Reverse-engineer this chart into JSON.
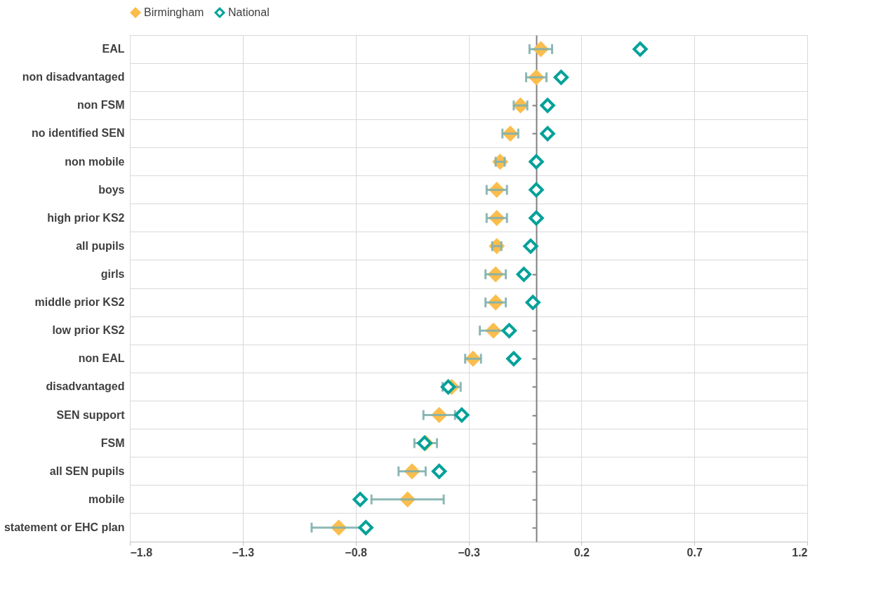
{
  "chart_data": {
    "type": "scatter",
    "orientation": "horizontal",
    "marker": "diamond",
    "legend": "top",
    "grid": true,
    "categories": [
      "EAL",
      "non disadvantaged",
      "non FSM",
      "no identified SEN",
      "non mobile",
      "boys",
      "high prior KS2",
      "all pupils",
      "girls",
      "middle prior KS2",
      "low prior KS2",
      "non EAL",
      "disadvantaged",
      "SEN support",
      "FSM",
      "all SEN pupils",
      "mobile",
      "statement or EHC plan"
    ],
    "series": [
      {
        "name": "Birmingham",
        "color": "#fbbd4c",
        "values": [
          0.02,
          0.0,
          -0.07,
          -0.115,
          -0.16,
          -0.175,
          -0.175,
          -0.175,
          -0.18,
          -0.18,
          -0.19,
          -0.28,
          -0.375,
          -0.43,
          -0.49,
          -0.55,
          -0.57,
          -0.875
        ],
        "errors": [
          0.05,
          0.045,
          0.03,
          0.035,
          0.02,
          0.045,
          0.045,
          0.02,
          0.045,
          0.045,
          0.06,
          0.035,
          0.04,
          0.07,
          0.05,
          0.06,
          0.16,
          0.12
        ]
      },
      {
        "name": "National",
        "color": "#00a19a",
        "values": [
          0.46,
          0.11,
          0.05,
          0.05,
          0.0,
          0.0,
          0.0,
          -0.025,
          -0.055,
          -0.015,
          -0.12,
          -0.1,
          -0.39,
          -0.33,
          -0.495,
          -0.43,
          -0.78,
          -0.755
        ]
      }
    ],
    "xlim": [
      -1.8,
      1.2
    ],
    "xticks": [
      -1.8,
      -1.3,
      -0.8,
      -0.3,
      0.2,
      0.7,
      1.2
    ]
  }
}
